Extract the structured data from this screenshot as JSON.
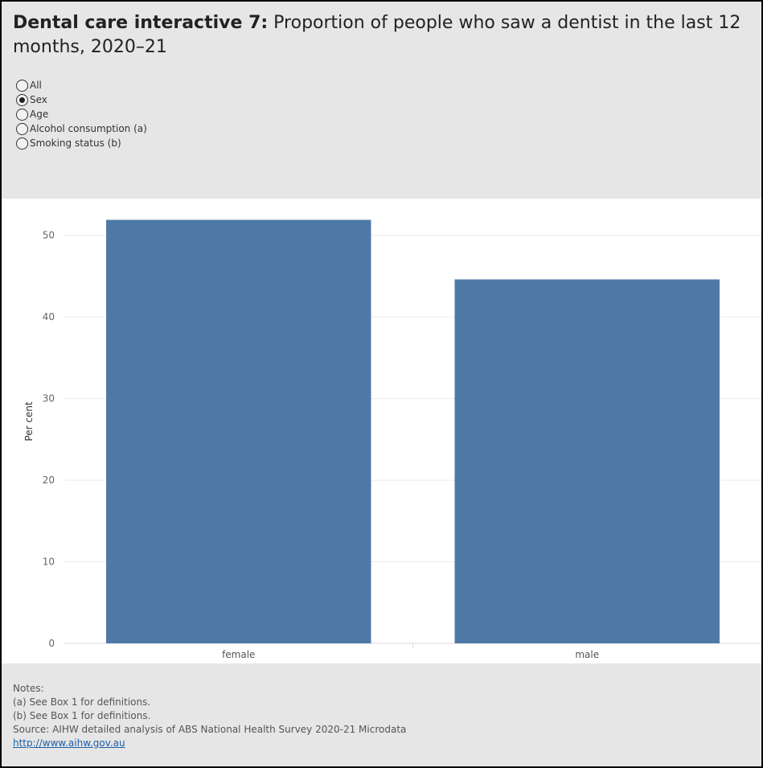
{
  "header": {
    "title_bold": "Dental care interactive 7:",
    "title_rest": " Proportion of people who saw a dentist in the last 12 months, 2020–21"
  },
  "filter": {
    "options": [
      "All",
      "Sex",
      "Age",
      "Alcohol consumption (a)",
      "Smoking status (b)"
    ],
    "selected": "Sex"
  },
  "colors": {
    "bar": "#4e79a7",
    "grid": "#ececec",
    "axis": "#d9d9d9"
  },
  "chart_data": {
    "type": "bar",
    "categories": [
      "female",
      "male"
    ],
    "values": [
      51.9,
      44.6
    ],
    "title": "",
    "xlabel": "",
    "ylabel": "Per cent",
    "ylim": [
      0,
      54.5
    ],
    "yticks": [
      0,
      10,
      20,
      30,
      40,
      50
    ],
    "grid": true,
    "legend": "none"
  },
  "notes": {
    "heading": "Notes:",
    "lines": [
      "(a) See Box 1 for definitions.",
      "(b) See Box 1 for definitions.",
      "Source: AIHW detailed analysis of ABS National Health Survey 2020-21 Microdata"
    ],
    "link_text": "http://www.aihw.gov.au"
  }
}
